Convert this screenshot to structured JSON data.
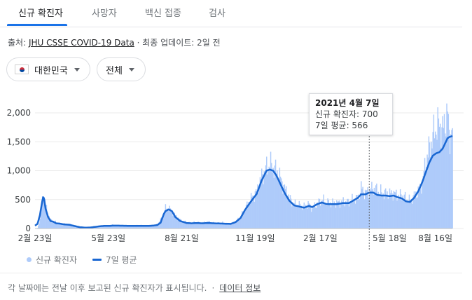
{
  "tabs": [
    "신규 확진자",
    "사망자",
    "백신 접종",
    "검사"
  ],
  "source": {
    "prefix": "출처: ",
    "link": "JHU CSSE COVID-19 Data",
    "suffix": " · 최종 업데이트: 2일 전"
  },
  "filters": {
    "country": "대한민국",
    "scope": "전체"
  },
  "tooltip": {
    "date": "2021년 4월 7일",
    "cases": "신규 확진자: 700",
    "avg": "7일 평균: 566"
  },
  "legend": {
    "bars": "신규 확진자",
    "line": "7일 평균"
  },
  "footer": {
    "text": "각 날짜에는 전날 이후 보고된 신규 확진자가 표시됩니다.",
    "link": "데이터 정보"
  },
  "colors": {
    "bar": "#aecbfa",
    "line": "#1967d2",
    "accent": "#1a73e8"
  },
  "icons": {
    "flag": "korea-flag-icon",
    "dropdown": "dropdown-caret-icon"
  },
  "chart_data": {
    "type": "bar",
    "ylim": [
      0,
      2000
    ],
    "yticks": [
      "0",
      "500",
      "1,000",
      "1,500",
      "2,000"
    ],
    "xticks": [
      "2월 23일",
      "5월 23일",
      "8월 21일",
      "11월 19일",
      "2월 17일",
      "5월 18일",
      "8월 16일"
    ],
    "highlight": {
      "date": "2021년 4월 7일",
      "cases": 700,
      "avg": 566
    },
    "series": [
      {
        "name": "신규 확진자",
        "kind": "bar",
        "daily_points": [
          [
            0,
            0
          ],
          [
            3,
            10
          ],
          [
            6,
            150
          ],
          [
            9,
            520
          ],
          [
            10,
            700
          ],
          [
            11,
            560
          ],
          [
            13,
            400
          ],
          [
            16,
            240
          ],
          [
            19,
            150
          ],
          [
            22,
            130
          ],
          [
            26,
            105
          ],
          [
            30,
            90
          ],
          [
            36,
            80
          ],
          [
            42,
            75
          ],
          [
            48,
            55
          ],
          [
            55,
            25
          ],
          [
            62,
            20
          ],
          [
            68,
            15
          ],
          [
            72,
            35
          ],
          [
            75,
            25
          ],
          [
            80,
            45
          ],
          [
            85,
            50
          ],
          [
            90,
            50
          ],
          [
            96,
            60
          ],
          [
            100,
            50
          ],
          [
            108,
            55
          ],
          [
            118,
            45
          ],
          [
            128,
            55
          ],
          [
            138,
            50
          ],
          [
            145,
            60
          ],
          [
            150,
            70
          ],
          [
            154,
            150
          ],
          [
            158,
            260
          ],
          [
            160,
            350
          ],
          [
            164,
            350
          ],
          [
            168,
            300
          ],
          [
            172,
            220
          ],
          [
            178,
            150
          ],
          [
            186,
            100
          ],
          [
            192,
            95
          ],
          [
            198,
            110
          ],
          [
            205,
            95
          ],
          [
            212,
            120
          ],
          [
            220,
            90
          ],
          [
            230,
            100
          ],
          [
            240,
            80
          ],
          [
            246,
            120
          ],
          [
            252,
            200
          ],
          [
            258,
            350
          ],
          [
            264,
            500
          ],
          [
            272,
            640
          ],
          [
            278,
            900
          ],
          [
            284,
            1050
          ],
          [
            288,
            1120
          ],
          [
            292,
            1050
          ],
          [
            296,
            1000
          ],
          [
            300,
            900
          ],
          [
            306,
            700
          ],
          [
            312,
            520
          ],
          [
            318,
            420
          ],
          [
            324,
            400
          ],
          [
            330,
            380
          ],
          [
            336,
            420
          ],
          [
            340,
            350
          ],
          [
            346,
            430
          ],
          [
            352,
            500
          ],
          [
            358,
            450
          ],
          [
            364,
            440
          ],
          [
            370,
            440
          ],
          [
            378,
            460
          ],
          [
            385,
            450
          ],
          [
            390,
            500
          ],
          [
            396,
            520
          ],
          [
            400,
            700
          ],
          [
            405,
            620
          ],
          [
            410,
            650
          ],
          [
            415,
            700
          ],
          [
            420,
            660
          ],
          [
            425,
            620
          ],
          [
            430,
            610
          ],
          [
            435,
            600
          ],
          [
            440,
            620
          ],
          [
            445,
            560
          ],
          [
            450,
            580
          ],
          [
            455,
            520
          ],
          [
            460,
            480
          ],
          [
            465,
            560
          ],
          [
            470,
            640
          ],
          [
            475,
            800
          ],
          [
            480,
            1200
          ],
          [
            484,
            1400
          ],
          [
            488,
            1600
          ],
          [
            492,
            1750
          ],
          [
            496,
            1800
          ],
          [
            500,
            1700
          ],
          [
            504,
            1900
          ],
          [
            506,
            2000
          ],
          [
            508,
            1600
          ],
          [
            512,
            1700
          ]
        ]
      },
      {
        "name": "7일 평균",
        "kind": "line",
        "points": [
          [
            0,
            50
          ],
          [
            3,
            80
          ],
          [
            6,
            230
          ],
          [
            9,
            480
          ],
          [
            10,
            540
          ],
          [
            11,
            520
          ],
          [
            13,
            340
          ],
          [
            16,
            200
          ],
          [
            19,
            130
          ],
          [
            22,
            120
          ],
          [
            26,
            90
          ],
          [
            30,
            85
          ],
          [
            36,
            70
          ],
          [
            42,
            65
          ],
          [
            48,
            45
          ],
          [
            55,
            22
          ],
          [
            62,
            15
          ],
          [
            68,
            18
          ],
          [
            72,
            25
          ],
          [
            75,
            30
          ],
          [
            80,
            40
          ],
          [
            85,
            45
          ],
          [
            90,
            45
          ],
          [
            96,
            50
          ],
          [
            100,
            50
          ],
          [
            108,
            48
          ],
          [
            118,
            45
          ],
          [
            128,
            45
          ],
          [
            138,
            45
          ],
          [
            145,
            50
          ],
          [
            150,
            60
          ],
          [
            154,
            100
          ],
          [
            158,
            250
          ],
          [
            160,
            300
          ],
          [
            164,
            330
          ],
          [
            168,
            300
          ],
          [
            172,
            200
          ],
          [
            178,
            130
          ],
          [
            186,
            95
          ],
          [
            192,
            90
          ],
          [
            198,
            95
          ],
          [
            205,
            90
          ],
          [
            212,
            95
          ],
          [
            220,
            90
          ],
          [
            230,
            85
          ],
          [
            240,
            80
          ],
          [
            246,
            110
          ],
          [
            252,
            180
          ],
          [
            258,
            330
          ],
          [
            264,
            450
          ],
          [
            272,
            600
          ],
          [
            278,
            830
          ],
          [
            284,
            1000
          ],
          [
            288,
            1020
          ],
          [
            292,
            1000
          ],
          [
            296,
            920
          ],
          [
            300,
            800
          ],
          [
            306,
            620
          ],
          [
            312,
            480
          ],
          [
            318,
            400
          ],
          [
            324,
            380
          ],
          [
            330,
            360
          ],
          [
            336,
            390
          ],
          [
            340,
            370
          ],
          [
            346,
            420
          ],
          [
            352,
            450
          ],
          [
            358,
            420
          ],
          [
            364,
            420
          ],
          [
            370,
            420
          ],
          [
            378,
            440
          ],
          [
            385,
            440
          ],
          [
            390,
            480
          ],
          [
            396,
            530
          ],
          [
            400,
            590
          ],
          [
            405,
            590
          ],
          [
            410,
            620
          ],
          [
            415,
            620
          ],
          [
            420,
            580
          ],
          [
            425,
            570
          ],
          [
            430,
            570
          ],
          [
            435,
            560
          ],
          [
            440,
            570
          ],
          [
            445,
            540
          ],
          [
            450,
            520
          ],
          [
            455,
            470
          ],
          [
            460,
            460
          ],
          [
            465,
            530
          ],
          [
            470,
            640
          ],
          [
            475,
            800
          ],
          [
            480,
            1000
          ],
          [
            484,
            1150
          ],
          [
            488,
            1260
          ],
          [
            492,
            1300
          ],
          [
            496,
            1320
          ],
          [
            500,
            1380
          ],
          [
            504,
            1500
          ],
          [
            506,
            1560
          ],
          [
            508,
            1580
          ],
          [
            512,
            1600
          ]
        ]
      }
    ]
  }
}
